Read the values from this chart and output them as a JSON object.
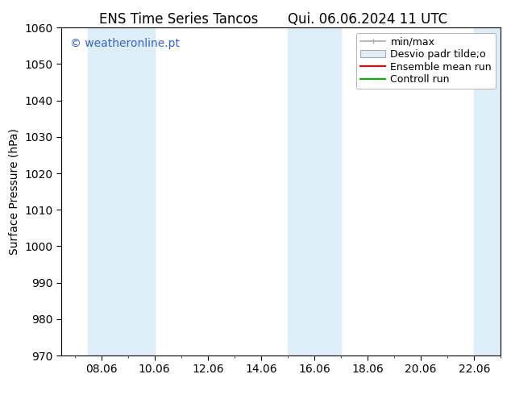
{
  "title_left": "ENS Time Series Tancos",
  "title_right": "Qui. 06.06.2024 11 UTC",
  "ylabel": "Surface Pressure (hPa)",
  "ylim": [
    970,
    1060
  ],
  "yticks": [
    970,
    980,
    990,
    1000,
    1010,
    1020,
    1030,
    1040,
    1050,
    1060
  ],
  "xtick_labels": [
    "08.06",
    "10.06",
    "12.06",
    "14.06",
    "16.06",
    "18.06",
    "20.06",
    "22.06"
  ],
  "xtick_positions": [
    8,
    10,
    12,
    14,
    16,
    18,
    20,
    22
  ],
  "xlim": [
    6.5,
    23.0
  ],
  "shaded_bands": [
    {
      "xmin": 7.5,
      "xmax": 10.0
    },
    {
      "xmin": 15.0,
      "xmax": 17.0
    },
    {
      "xmin": 22.0,
      "xmax": 23.5
    }
  ],
  "shade_color": "#ddeef8",
  "bg_color": "#ffffff",
  "plot_bg_color": "#ffffff",
  "watermark": "© weatheronline.pt",
  "watermark_color": "#3366cc",
  "legend_labels": [
    "min/max",
    "Desvio padr tilde;o",
    "Ensemble mean run",
    "Controll run"
  ],
  "grid_color": "#dddddd",
  "tick_color": "#000000",
  "font_size": 10,
  "title_font_size": 12
}
